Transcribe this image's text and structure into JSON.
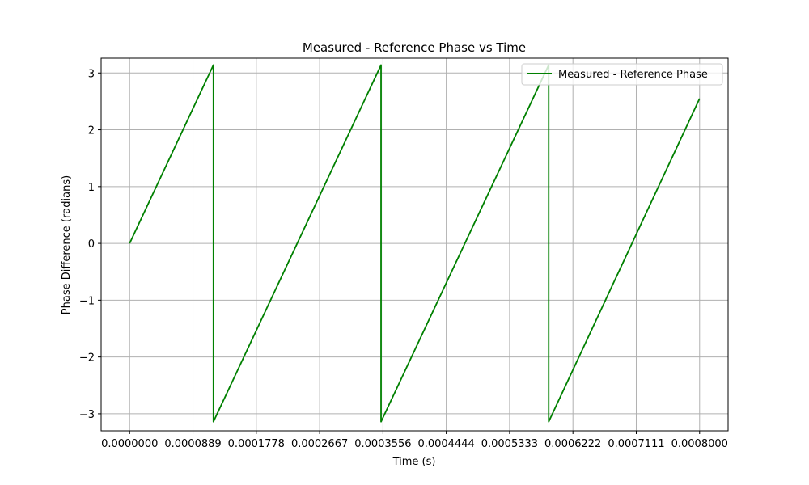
{
  "chart_data": {
    "type": "line",
    "title": "Measured - Reference Phase vs Time",
    "xlabel": "Time (s)",
    "ylabel": "Phase Difference (radians)",
    "xlim": [
      -4e-05,
      0.00084
    ],
    "ylim": [
      -3.3,
      3.26
    ],
    "grid": true,
    "legend_position": "top-right",
    "x_ticks": [
      0.0,
      8.89e-05,
      0.0001778,
      0.0002667,
      0.0003556,
      0.0004444,
      0.0005333,
      0.0006222,
      0.0007111,
      0.0008
    ],
    "x_tick_labels": [
      "0.0000000",
      "0.0000889",
      "0.0001778",
      "0.0002667",
      "0.0003556",
      "0.0004444",
      "0.0005333",
      "0.0006222",
      "0.0007111",
      "0.0008000"
    ],
    "y_ticks": [
      -3,
      -2,
      -1,
      0,
      1,
      2,
      3
    ],
    "y_tick_labels": [
      "−3",
      "−2",
      "−1",
      "0",
      "1",
      "2",
      "3"
    ],
    "series": [
      {
        "name": "Measured - Reference Phase",
        "color": "#008000",
        "x": [
          0.0,
          0.0001176,
          0.0001176,
          0.0003529,
          0.0003529,
          0.0005882,
          0.0005882,
          0.0008
        ],
        "y": [
          0.0,
          3.14,
          -3.14,
          3.14,
          -3.14,
          3.14,
          -3.14,
          2.55
        ]
      }
    ]
  }
}
